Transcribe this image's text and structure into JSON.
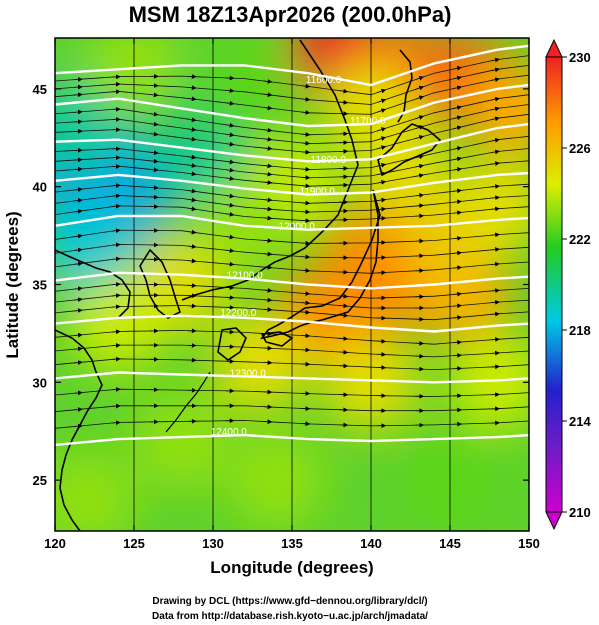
{
  "chart_data": {
    "type": "heatmap",
    "title": "MSM 18Z13Apr2026 (200.0hPa)",
    "xlabel": "Longitude (degrees)",
    "ylabel": "Latitude  (degrees)",
    "xlim": [
      120,
      150
    ],
    "ylim": [
      22.4,
      47.6
    ],
    "x_ticks": [
      120,
      125,
      130,
      135,
      140,
      145,
      150
    ],
    "y_ticks": [
      25,
      30,
      35,
      40,
      45
    ],
    "colorbar": {
      "min": 210,
      "max": 230,
      "ticks": [
        210,
        214,
        218,
        222,
        226,
        230
      ],
      "colors": [
        "#cc00cc",
        "#2222cc",
        "#00c8e6",
        "#22cc22",
        "#ddee00",
        "#ff9900",
        "#ee2222"
      ]
    },
    "heights": [
      {
        "label": "11600.0",
        "lon": 137.0,
        "lat": 45.3
      },
      {
        "label": "11700.0",
        "lon": 139.8,
        "lat": 43.2
      },
      {
        "label": "11800.0",
        "lon": 137.3,
        "lat": 41.2
      },
      {
        "label": "11900.0",
        "lon": 136.6,
        "lat": 39.6
      },
      {
        "label": "12000.0",
        "lon": 135.3,
        "lat": 37.8
      },
      {
        "label": "12100.0",
        "lon": 132.0,
        "lat": 35.3
      },
      {
        "label": "12200.0",
        "lon": 131.6,
        "lat": 33.4
      },
      {
        "label": "12300.0",
        "lon": 132.2,
        "lat": 30.3
      },
      {
        "label": "12400.0",
        "lon": 131.0,
        "lat": 27.3
      }
    ],
    "contour_lines": [
      {
        "lon": [
          120,
          124,
          128,
          132,
          136,
          140,
          144,
          148,
          150
        ],
        "lat": [
          45.8,
          46.0,
          46.2,
          46.2,
          45.8,
          45.2,
          46.3,
          47.0,
          47.2
        ]
      },
      {
        "lon": [
          120,
          124,
          128,
          132,
          136,
          140,
          144,
          148,
          150
        ],
        "lat": [
          44.2,
          44.5,
          44.0,
          43.5,
          43.1,
          43.2,
          44.3,
          45.0,
          45.2
        ]
      },
      {
        "lon": [
          120,
          124,
          128,
          132,
          136,
          140,
          144,
          148,
          150
        ],
        "lat": [
          42.3,
          42.4,
          42.0,
          41.6,
          41.3,
          41.4,
          42.2,
          43.0,
          43.2
        ]
      },
      {
        "lon": [
          120,
          124,
          128,
          132,
          136,
          140,
          144,
          148,
          150
        ],
        "lat": [
          40.3,
          40.6,
          40.3,
          39.9,
          39.6,
          39.7,
          40.2,
          40.6,
          40.7
        ]
      },
      {
        "lon": [
          120,
          124,
          128,
          132,
          136,
          140,
          144,
          148,
          150
        ],
        "lat": [
          38.0,
          38.5,
          38.5,
          38.0,
          37.8,
          37.9,
          38.0,
          38.3,
          38.4
        ]
      },
      {
        "lon": [
          120,
          124,
          128,
          132,
          136,
          140,
          144,
          148,
          150
        ],
        "lat": [
          35.2,
          35.6,
          35.5,
          35.3,
          35.0,
          34.8,
          35.0,
          35.3,
          35.4
        ]
      },
      {
        "lon": [
          120,
          124,
          128,
          132,
          136,
          140,
          144,
          148,
          150
        ],
        "lat": [
          33.0,
          33.3,
          33.4,
          33.3,
          33.1,
          32.8,
          32.6,
          32.9,
          33.0
        ]
      },
      {
        "lon": [
          120,
          124,
          128,
          132,
          136,
          140,
          144,
          148,
          150
        ],
        "lat": [
          30.2,
          30.5,
          30.4,
          30.3,
          30.2,
          30.1,
          30.0,
          30.1,
          30.2
        ]
      },
      {
        "lon": [
          120,
          124,
          128,
          132,
          136,
          140,
          144,
          148,
          150
        ],
        "lat": [
          26.8,
          27.1,
          27.2,
          27.3,
          27.1,
          27.0,
          27.1,
          27.2,
          27.3
        ]
      }
    ],
    "temperature_field": [
      {
        "lon": 120.5,
        "lat": 41,
        "value": 216
      },
      {
        "lon": 123,
        "lat": 41,
        "value": 215
      },
      {
        "lon": 126,
        "lat": 41.5,
        "value": 216
      },
      {
        "lon": 129,
        "lat": 42,
        "value": 218
      },
      {
        "lon": 124,
        "lat": 39,
        "value": 216
      },
      {
        "lon": 122,
        "lat": 37,
        "value": 217
      },
      {
        "lon": 121,
        "lat": 43,
        "value": 218
      },
      {
        "lon": 127,
        "lat": 44,
        "value": 219
      },
      {
        "lon": 132,
        "lat": 45,
        "value": 221
      },
      {
        "lon": 125,
        "lat": 46,
        "value": 222
      },
      {
        "lon": 138,
        "lat": 47,
        "value": 230
      },
      {
        "lon": 142,
        "lat": 46,
        "value": 228
      },
      {
        "lon": 146,
        "lat": 45.5,
        "value": 228
      },
      {
        "lon": 149,
        "lat": 44,
        "value": 226
      },
      {
        "lon": 140,
        "lat": 44,
        "value": 224
      },
      {
        "lon": 139,
        "lat": 34.5,
        "value": 228
      },
      {
        "lon": 143,
        "lat": 35,
        "value": 227
      },
      {
        "lon": 146,
        "lat": 34.5,
        "value": 226
      },
      {
        "lon": 137,
        "lat": 33.5,
        "value": 227
      },
      {
        "lon": 140,
        "lat": 36.5,
        "value": 227
      },
      {
        "lon": 145,
        "lat": 37,
        "value": 225
      },
      {
        "lon": 128,
        "lat": 35,
        "value": 224
      },
      {
        "lon": 124,
        "lat": 33,
        "value": 223
      },
      {
        "lon": 133,
        "lat": 31,
        "value": 224
      },
      {
        "lon": 140,
        "lat": 30,
        "value": 224
      },
      {
        "lon": 128,
        "lat": 27,
        "value": 222
      },
      {
        "lon": 145,
        "lat": 25,
        "value": 221
      },
      {
        "lon": 122,
        "lat": 24,
        "value": 222
      },
      {
        "lon": 135,
        "lat": 40,
        "value": 223
      },
      {
        "lon": 132,
        "lat": 38,
        "value": 222
      },
      {
        "lon": 142,
        "lat": 41,
        "value": 224
      },
      {
        "lon": 148,
        "lat": 39,
        "value": 224
      },
      {
        "lon": 148,
        "lat": 30,
        "value": 223
      },
      {
        "lon": 134,
        "lat": 25,
        "value": 222
      }
    ],
    "credit_lines": [
      "Drawing by DCL (https://www.gfd−dennou.org/library/dcl/)",
      "Data from http://database.rish.kyoto−u.ac.jp/arch/jmadata/"
    ]
  }
}
